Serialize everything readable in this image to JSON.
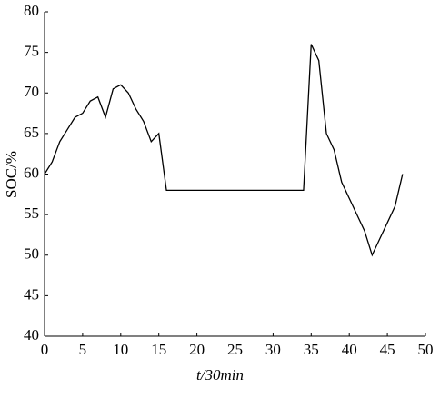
{
  "chart_data": {
    "type": "line",
    "x_label": "t/30min",
    "y_label": "SOC/%",
    "x": [
      0,
      1,
      2,
      3,
      4,
      5,
      6,
      7,
      8,
      9,
      10,
      11,
      12,
      13,
      14,
      15,
      16,
      17,
      18,
      19,
      20,
      21,
      22,
      23,
      24,
      25,
      26,
      27,
      28,
      29,
      30,
      31,
      32,
      33,
      34,
      35,
      36,
      37,
      38,
      39,
      40,
      41,
      42,
      43,
      44,
      45,
      46,
      47
    ],
    "series": [
      {
        "color": "#000000",
        "values": [
          60,
          61.5,
          64,
          65.5,
          67,
          67.5,
          69,
          69.5,
          67,
          70.5,
          71,
          70,
          68,
          66.5,
          64,
          65,
          58,
          58,
          58,
          58,
          58,
          58,
          58,
          58,
          58,
          58,
          58,
          58,
          58,
          58,
          58,
          58,
          58,
          58,
          58,
          76,
          74,
          65,
          63,
          59,
          57,
          55,
          53,
          50,
          52,
          54,
          56,
          60
        ]
      }
    ],
    "xlim": [
      0,
      50
    ],
    "xticks": [
      0,
      5,
      10,
      15,
      20,
      25,
      30,
      35,
      40,
      45,
      50
    ],
    "ylim": [
      40,
      80
    ],
    "yticks": [
      40,
      45,
      50,
      55,
      60,
      65,
      70,
      75,
      80
    ]
  }
}
